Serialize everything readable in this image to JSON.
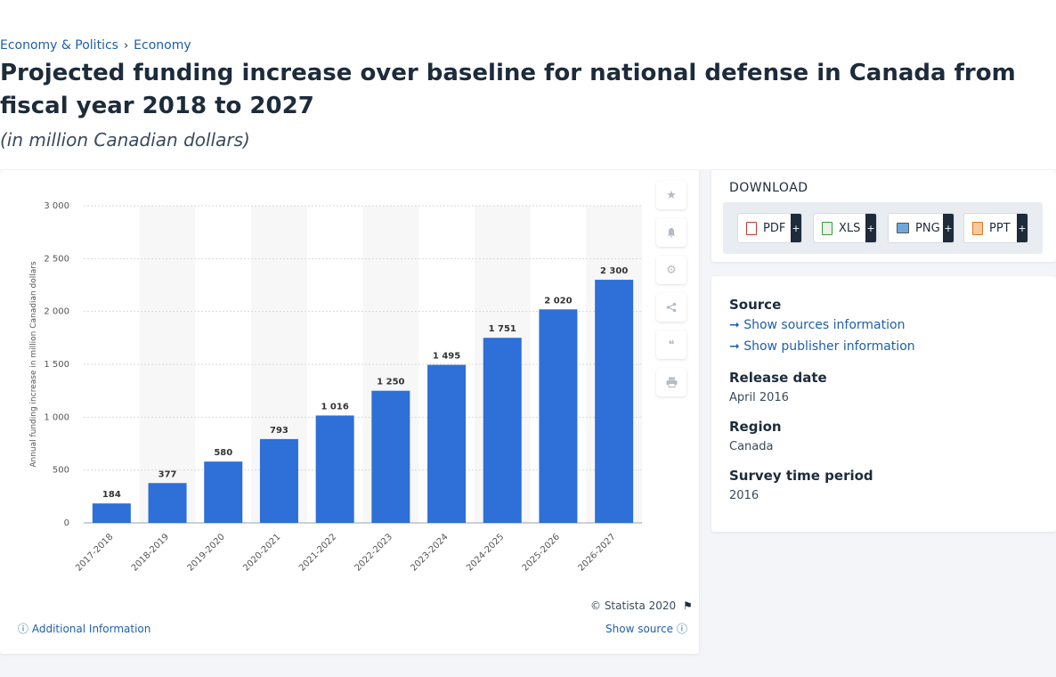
{
  "breadcrumb": {
    "item1": "Economy & Politics",
    "sep": "›",
    "item2": "Economy"
  },
  "page": {
    "title": "Projected funding increase over baseline for national defense in Canada from fiscal year 2018 to 2027",
    "subtitle": "(in million Canadian dollars)"
  },
  "chart_data": {
    "type": "bar",
    "categories": [
      "2017-2018",
      "2018-2019",
      "2019-2020",
      "2020-2021",
      "2021-2022",
      "2022-2023",
      "2023-2024",
      "2024-2025",
      "2025-2026",
      "2026-2027"
    ],
    "values": [
      184,
      377,
      580,
      793,
      1016,
      1250,
      1495,
      1751,
      2020,
      2300
    ],
    "value_labels": [
      "184",
      "377",
      "580",
      "793",
      "1 016",
      "1 250",
      "1 495",
      "1 751",
      "2 020",
      "2 300"
    ],
    "ylabel": "Annual funding increase in million Canadian dollars",
    "xlabel": "",
    "ylim": [
      0,
      3000
    ],
    "yticks": [
      0,
      500,
      1000,
      1500,
      2000,
      2500,
      3000
    ],
    "ytick_labels": [
      "0",
      "500",
      "1 000",
      "1 500",
      "2 000",
      "2 500",
      "3 000"
    ],
    "bar_color": "#2e6fd8",
    "grid": true
  },
  "chart_footer": {
    "copyright": "© Statista 2020",
    "additional_info": "Additional Information",
    "show_source": "Show source"
  },
  "download": {
    "title": "DOWNLOAD",
    "buttons": [
      {
        "label": "PDF",
        "plus": "+"
      },
      {
        "label": "XLS",
        "plus": "+"
      },
      {
        "label": "PNG",
        "plus": "+"
      },
      {
        "label": "PPT",
        "plus": "+"
      }
    ]
  },
  "source_panel": {
    "source_label": "Source",
    "show_sources": "Show sources information",
    "show_publisher": "Show publisher information",
    "release_label": "Release date",
    "release_value": "April 2016",
    "region_label": "Region",
    "region_value": "Canada",
    "survey_label": "Survey time period",
    "survey_value": "2016"
  },
  "side_icons": [
    "star-icon",
    "bell-icon",
    "gear-icon",
    "share-icon",
    "quote-icon",
    "print-icon"
  ]
}
